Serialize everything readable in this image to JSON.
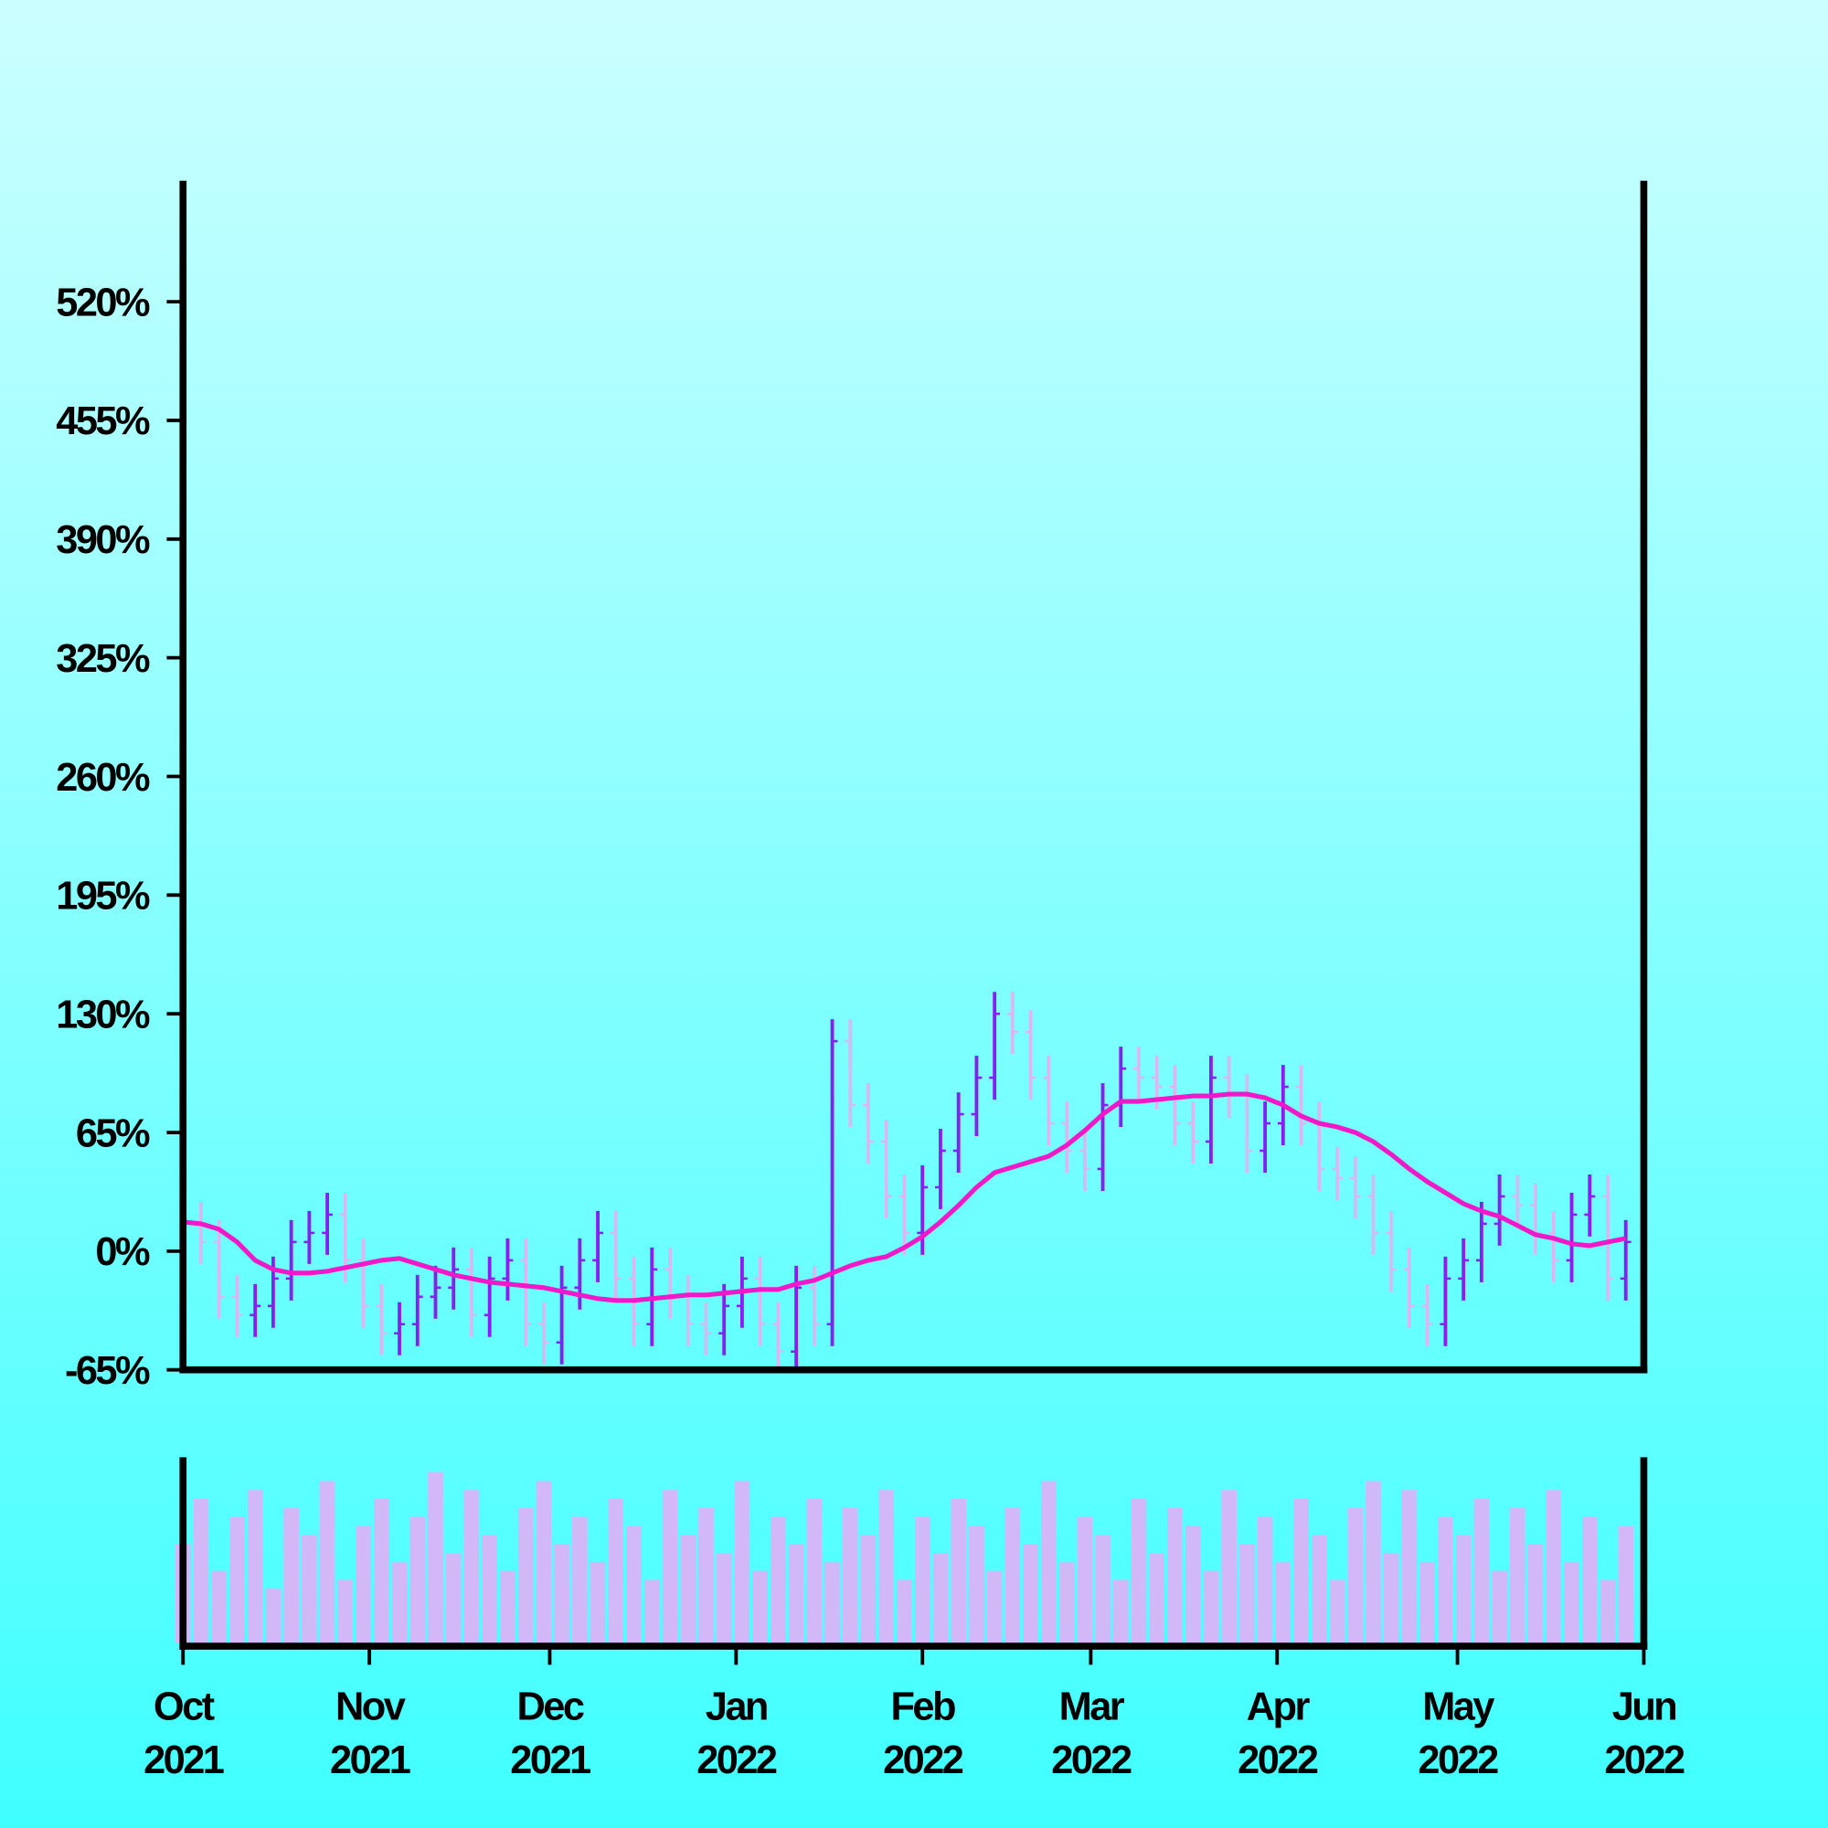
{
  "chart_data": {
    "type": "ohlc",
    "x": [
      0,
      3,
      6,
      9,
      12,
      15,
      18,
      21,
      24,
      27,
      30,
      33,
      36,
      39,
      42,
      45,
      48,
      51,
      54,
      57,
      60,
      63,
      66,
      69,
      72,
      75,
      78,
      81,
      84,
      87,
      90,
      93,
      96,
      99,
      102,
      105,
      108,
      111,
      114,
      117,
      120,
      123,
      126,
      129,
      132,
      135,
      138,
      141,
      144,
      147,
      150,
      153,
      156,
      159,
      162,
      165,
      168,
      171,
      174,
      177,
      180,
      183,
      186,
      189,
      192,
      195,
      198,
      201,
      204,
      207,
      210,
      213,
      216,
      219,
      222,
      225,
      228,
      231,
      234,
      237,
      240
    ],
    "open": [
      20,
      15,
      5,
      -25,
      -35,
      -30,
      -15,
      5,
      10,
      20,
      -5,
      -30,
      -45,
      -40,
      -25,
      -20,
      -10,
      -35,
      -15,
      -5,
      -40,
      -50,
      -20,
      -5,
      10,
      -15,
      -40,
      -10,
      -25,
      -40,
      -45,
      -30,
      -15,
      -40,
      -55,
      -20,
      -40,
      115,
      80,
      60,
      30,
      10,
      35,
      55,
      75,
      95,
      130,
      120,
      95,
      70,
      55,
      45,
      80,
      100,
      95,
      90,
      70,
      60,
      95,
      85,
      55,
      70,
      90,
      70,
      45,
      40,
      30,
      10,
      -10,
      -30,
      -40,
      -15,
      -5,
      15,
      30,
      25,
      10,
      -5,
      20,
      30,
      -15
    ],
    "high": [
      32,
      27,
      17,
      -13,
      -18,
      -3,
      17,
      22,
      32,
      32,
      7,
      -18,
      -28,
      -13,
      -8,
      2,
      2,
      -3,
      7,
      7,
      -28,
      -8,
      7,
      22,
      22,
      -3,
      2,
      2,
      -13,
      -28,
      -18,
      -3,
      -3,
      -28,
      -8,
      -8,
      127,
      127,
      92,
      72,
      42,
      47,
      67,
      87,
      107,
      142,
      142,
      132,
      107,
      82,
      67,
      92,
      112,
      112,
      107,
      102,
      82,
      107,
      107,
      97,
      82,
      102,
      102,
      82,
      57,
      52,
      42,
      22,
      2,
      -18,
      -3,
      7,
      27,
      42,
      42,
      37,
      22,
      32,
      42,
      42,
      17
    ],
    "low": [
      3,
      -7,
      -37,
      -47,
      -47,
      -42,
      -27,
      -7,
      -2,
      -17,
      -42,
      -57,
      -57,
      -52,
      -37,
      -32,
      -47,
      -47,
      -27,
      -52,
      -62,
      -62,
      -32,
      -17,
      -27,
      -52,
      -52,
      -37,
      -52,
      -57,
      -57,
      -42,
      -52,
      -67,
      -67,
      -52,
      -52,
      68,
      48,
      18,
      -2,
      -2,
      23,
      43,
      63,
      83,
      108,
      83,
      58,
      43,
      33,
      33,
      68,
      83,
      78,
      58,
      48,
      48,
      73,
      43,
      43,
      58,
      58,
      33,
      28,
      18,
      -2,
      -22,
      -42,
      -52,
      -52,
      -27,
      -17,
      3,
      13,
      -2,
      -17,
      -17,
      8,
      -27,
      -27
    ],
    "close": [
      15,
      5,
      -25,
      -35,
      -30,
      -15,
      5,
      10,
      20,
      -5,
      -30,
      -45,
      -40,
      -25,
      -20,
      -10,
      -35,
      -15,
      -5,
      -40,
      -50,
      -20,
      -5,
      10,
      -15,
      -40,
      -10,
      -25,
      -40,
      -45,
      -30,
      -15,
      -40,
      -55,
      -20,
      -40,
      115,
      80,
      60,
      30,
      10,
      35,
      55,
      75,
      95,
      130,
      120,
      95,
      70,
      55,
      45,
      80,
      100,
      95,
      90,
      70,
      60,
      95,
      85,
      55,
      70,
      90,
      70,
      45,
      40,
      30,
      10,
      -10,
      -30,
      -40,
      -15,
      -5,
      15,
      30,
      25,
      10,
      -5,
      20,
      30,
      -15,
      5
    ],
    "ma": [
      16,
      15,
      12,
      5,
      -5,
      -10,
      -12,
      -12,
      -11,
      -9,
      -7,
      -5,
      -4,
      -7,
      -10,
      -13,
      -15,
      -17,
      -18,
      -19,
      -20,
      -22,
      -24,
      -26,
      -27,
      -27,
      -26,
      -25,
      -24,
      -24,
      -23,
      -22,
      -21,
      -21,
      -18,
      -16,
      -12,
      -8,
      -5,
      -3,
      2,
      8,
      16,
      25,
      35,
      43,
      46,
      49,
      52,
      58,
      66,
      75,
      82,
      82,
      83,
      84,
      85,
      85,
      86,
      86,
      84,
      80,
      74,
      70,
      68,
      65,
      60,
      53,
      45,
      38,
      32,
      26,
      22,
      19,
      14,
      9,
      7,
      4,
      3,
      5,
      7
    ],
    "volume": [
      55,
      80,
      40,
      70,
      85,
      30,
      75,
      60,
      90,
      35,
      65,
      80,
      45,
      70,
      95,
      50,
      85,
      60,
      40,
      75,
      90,
      55,
      70,
      45,
      80,
      65,
      35,
      85,
      60,
      75,
      50,
      90,
      40,
      70,
      55,
      80,
      45,
      75,
      60,
      85,
      35,
      70,
      50,
      80,
      65,
      40,
      75,
      55,
      90,
      45,
      70,
      60,
      35,
      80,
      50,
      75,
      65,
      40,
      85,
      55,
      70,
      45,
      80,
      60,
      35,
      75,
      90,
      50,
      85,
      45,
      70,
      60,
      80,
      40,
      75,
      55,
      85,
      45,
      70,
      35,
      65
    ],
    "vlim": [
      0,
      100
    ],
    "xlim": [
      0,
      243
    ],
    "xticks": [
      {
        "value": 0,
        "label": "Oct 2021"
      },
      {
        "value": 31,
        "label": "Nov 2021"
      },
      {
        "value": 61,
        "label": "Dec 2021"
      },
      {
        "value": 92,
        "label": "Jan 2022"
      },
      {
        "value": 123,
        "label": "Feb 2022"
      },
      {
        "value": 151,
        "label": "Mar 2022"
      },
      {
        "value": 182,
        "label": "Apr 2022"
      },
      {
        "value": 212,
        "label": "May 2022"
      },
      {
        "value": 243,
        "label": "Jun 2022"
      }
    ],
    "ylim": [
      -65,
      585
    ],
    "yticks": [
      {
        "value": -65,
        "label": "-65%"
      },
      {
        "value": 0,
        "label": "0%"
      },
      {
        "value": 65,
        "label": "65%"
      },
      {
        "value": 130,
        "label": "130%"
      },
      {
        "value": 195,
        "label": "195%"
      },
      {
        "value": 260,
        "label": "260%"
      },
      {
        "value": 325,
        "label": "325%"
      },
      {
        "value": 390,
        "label": "390%"
      },
      {
        "value": 455,
        "label": "455%"
      },
      {
        "value": 520,
        "label": "520%"
      }
    ],
    "up_color": "#8a1ef0",
    "down_color": "#d9b8f2",
    "ma_color": "#f018c8",
    "volume_color": "#d3b8f8"
  }
}
